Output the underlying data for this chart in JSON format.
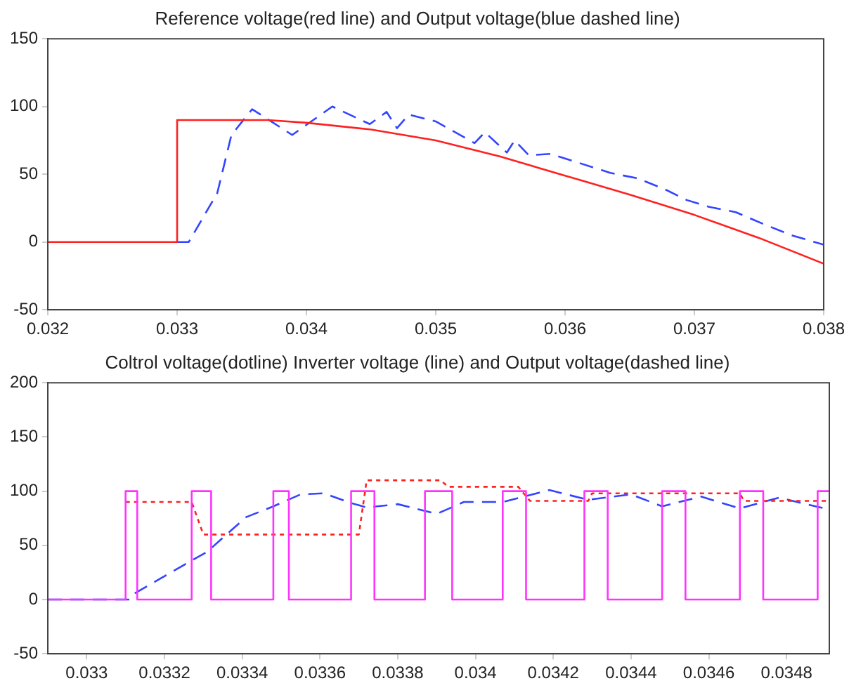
{
  "chart_data": [
    {
      "type": "line",
      "title": "Reference voltage(red line) and Output voltage(blue dashed line)",
      "xlim": [
        0.032,
        0.038
      ],
      "xticks": [
        0.032,
        0.033,
        0.034,
        0.035,
        0.036,
        0.037,
        0.038
      ],
      "ylim": [
        -50,
        150
      ],
      "yticks": [
        -50,
        0,
        50,
        100,
        150
      ],
      "grid": false,
      "legend": false,
      "marker": "none",
      "series": [
        {
          "color": "#ff2020",
          "line_style": "solid",
          "x": [
            0.032,
            0.033,
            0.033,
            0.0337,
            0.034,
            0.0345,
            0.035,
            0.0355,
            0.036,
            0.0365,
            0.037,
            0.0375,
            0.038
          ],
          "values": [
            0,
            0,
            90,
            90,
            88,
            83,
            75,
            63,
            49,
            35,
            20,
            3,
            -16
          ]
        },
        {
          "color": "#3344ff",
          "line_style": "dashed",
          "x": [
            0.033,
            0.03309,
            0.03331,
            0.03342,
            0.03358,
            0.03389,
            0.0342,
            0.03449,
            0.03462,
            0.0347,
            0.03479,
            0.035,
            0.0353,
            0.03538,
            0.03555,
            0.03561,
            0.03572,
            0.03589,
            0.03635,
            0.03656,
            0.03677,
            0.03694,
            0.03711,
            0.03732,
            0.03754,
            0.03775,
            0.038
          ],
          "values": [
            0,
            0,
            36,
            79,
            98,
            79,
            100,
            87,
            96,
            84,
            94,
            89,
            73,
            81,
            66,
            75,
            64,
            65,
            51,
            47,
            39,
            31,
            26,
            22,
            13,
            5,
            -2
          ]
        }
      ]
    },
    {
      "type": "line",
      "title": "Coltrol voltage(dotline) Inverter voltage (line) and Output voltage(dashed line)",
      "xlim": [
        0.0329,
        0.03491
      ],
      "xticks": [
        0.033,
        0.0332,
        0.0334,
        0.0336,
        0.0338,
        0.034,
        0.0342,
        0.0344,
        0.0346,
        0.0348
      ],
      "ylim": [
        -50,
        200
      ],
      "yticks": [
        -50,
        0,
        50,
        100,
        150,
        200
      ],
      "grid": false,
      "legend": false,
      "marker": "none",
      "series": [
        {
          "color": "#ff33ff",
          "line_style": "solid",
          "x": [
            0.0329,
            0.0331,
            0.0331,
            0.03313,
            0.03313,
            0.03327,
            0.03327,
            0.03332,
            0.03332,
            0.03348,
            0.03348,
            0.03352,
            0.03352,
            0.03368,
            0.03368,
            0.03374,
            0.03374,
            0.03387,
            0.03387,
            0.03394,
            0.03394,
            0.03407,
            0.03407,
            0.03413,
            0.03413,
            0.03428,
            0.03428,
            0.03434,
            0.03434,
            0.03448,
            0.03448,
            0.03454,
            0.03454,
            0.03468,
            0.03468,
            0.03474,
            0.03474,
            0.03488,
            0.03488,
            0.03491
          ],
          "values": [
            0,
            0,
            100,
            100,
            0,
            0,
            100,
            100,
            0,
            0,
            100,
            100,
            0,
            0,
            100,
            100,
            0,
            0,
            100,
            100,
            0,
            0,
            100,
            100,
            0,
            0,
            100,
            100,
            0,
            0,
            100,
            100,
            0,
            0,
            100,
            100,
            0,
            0,
            100,
            100
          ]
        },
        {
          "color": "#ff2020",
          "line_style": "dotted",
          "x": [
            0.0331,
            0.03327,
            0.0333,
            0.0337,
            0.03372,
            0.03391,
            0.03393,
            0.03411,
            0.03414,
            0.03429,
            0.0343,
            0.03468,
            0.03469,
            0.03491
          ],
          "values": [
            90,
            90,
            60,
            60,
            110,
            110,
            104,
            104,
            91,
            91,
            98,
            98,
            91,
            91
          ]
        },
        {
          "color": "#3344ff",
          "line_style": "dashed",
          "x": [
            0.0329,
            0.03311,
            0.03312,
            0.03327,
            0.03331,
            0.03335,
            0.03341,
            0.03348,
            0.03355,
            0.03361,
            0.03368,
            0.03372,
            0.0338,
            0.0339,
            0.03397,
            0.03407,
            0.03419,
            0.03429,
            0.0344,
            0.03448,
            0.03458,
            0.03468,
            0.03478,
            0.03491
          ],
          "values": [
            0,
            0,
            5,
            36,
            44,
            57,
            76,
            86,
            97,
            98,
            89,
            85,
            88,
            79,
            90,
            90,
            101,
            92,
            97,
            86,
            95,
            84,
            94,
            83
          ]
        }
      ]
    }
  ]
}
